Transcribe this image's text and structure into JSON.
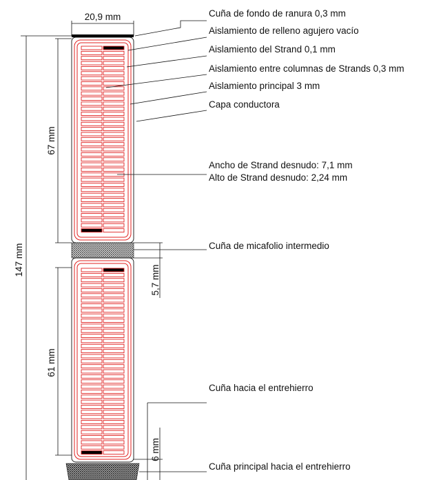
{
  "labels": {
    "slot_bottom_wedge": "Cuña de fondo de ranura  0,3 mm",
    "void_filler_insulation": "Aislamiento de relleno agujero vacío",
    "strand_insulation": "Aislamiento del Strand 0,1 mm",
    "column_insulation": "Aislamiento entre columnas de Strands 0,3 mm",
    "main_insulation": "Aislamiento principal 3 mm",
    "conductive_layer": "Capa conductora",
    "bare_strand_width": "Ancho de Strand desnudo: 7,1 mm",
    "bare_strand_height": "Alto de Strand desnudo: 2,24 mm",
    "intermediate_wedge": "Cuña de micafolio intermedio",
    "wedge_to_gap": "Cuña hacia el entrehierro",
    "main_wedge_to_gap": "Cuña principal hacia el entrehierro"
  },
  "dimensions": {
    "slot_width": "20,9 mm",
    "total_height": "147 mm",
    "upper_bar_height": "67 mm",
    "lower_bar_height": "61 mm",
    "intermediate_gap": "5,7 mm",
    "top_wedge_gap": "6 mm"
  },
  "colors": {
    "insulation_outline": "#e0201f",
    "outline": "#111111",
    "filler": "#000000"
  }
}
